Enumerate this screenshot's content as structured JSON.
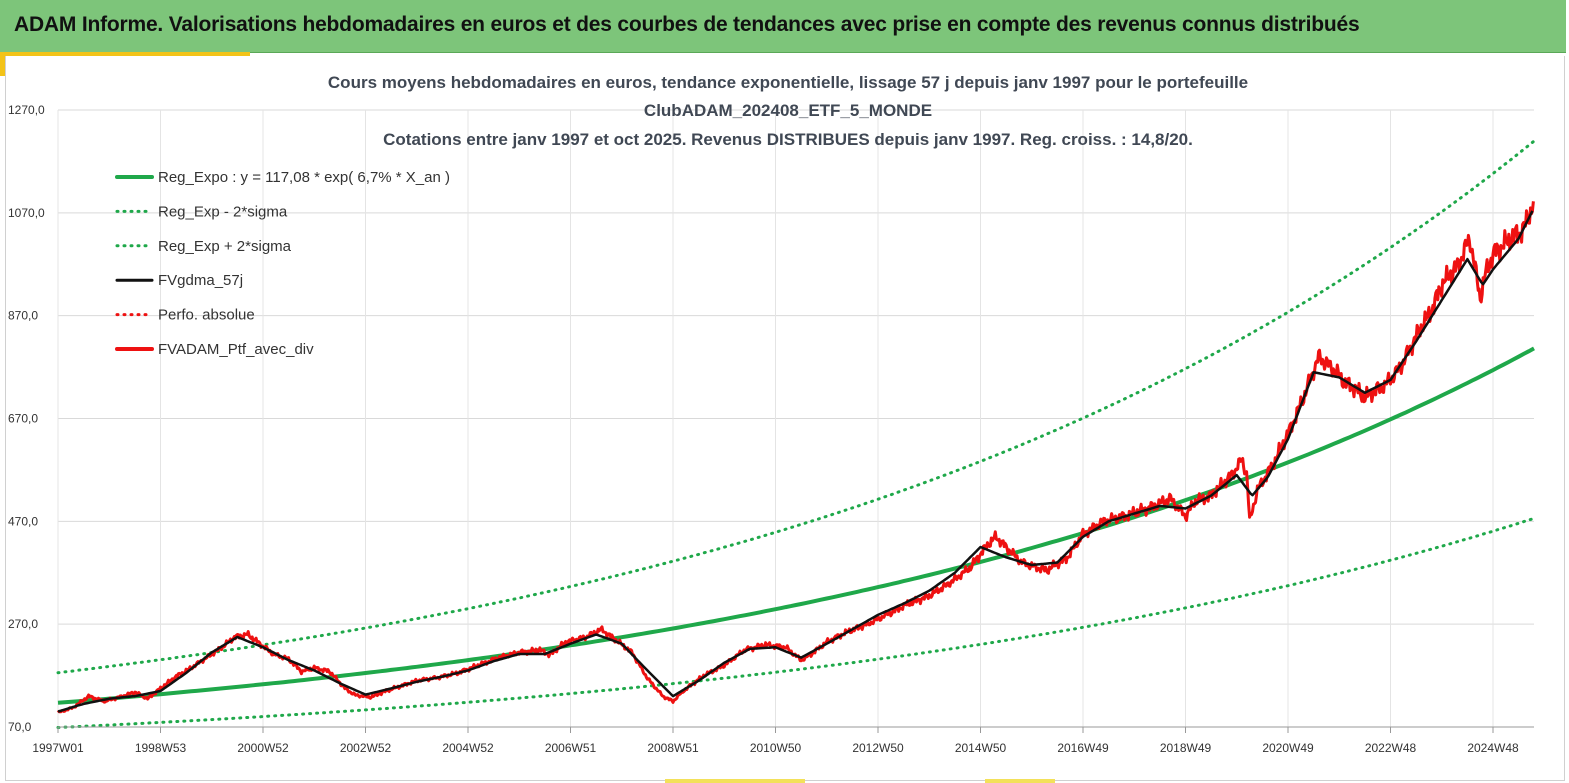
{
  "header": {
    "title": "ADAM Informe. Valorisations hebdomadaires en euros et des courbes de tendances avec prise en compte des revenus connus distribués"
  },
  "colors": {
    "banner": "#7dc57a",
    "accent": "#f3c318",
    "trend_green": "#1fa84a",
    "price_red": "#ee1111",
    "smooth_black": "#111111"
  },
  "chart_data": {
    "type": "line",
    "title": [
      "Cours moyens hebdomadaires  en euros, tendance exponentielle, lissage 57 j depuis janv 1997 pour le portefeuille",
      "ClubADAM_202408_ETF_5_MONDE",
      "Cotations  entre janv 1997 et oct 2025. Revenus DISTRIBUES depuis janv 1997. Reg. croiss. : 14,8/20."
    ],
    "y_ticks": [
      "1270,0",
      "1070,0",
      "870,0",
      "670,0",
      "470,0",
      "270,0",
      "70,0"
    ],
    "y_tick_values": [
      1270,
      1070,
      870,
      670,
      470,
      270,
      70
    ],
    "ylim": [
      70,
      1270
    ],
    "x_ticks": [
      "1997W01",
      "1998W53",
      "2000W52",
      "2002W52",
      "2004W52",
      "2006W51",
      "2008W51",
      "2010W50",
      "2012W50",
      "2014W50",
      "2016W49",
      "2018W49",
      "2020W49",
      "2022W48",
      "2024W48"
    ],
    "x_tick_years": [
      1997,
      1999,
      2001,
      2003,
      2005,
      2007,
      2009,
      2011,
      2013,
      2015,
      2017,
      2019,
      2021,
      2023,
      2025
    ],
    "xlim_years": [
      1997,
      2025.8
    ],
    "grid": true,
    "legend": {
      "placement": "top-left",
      "entries": [
        "Reg_Expo : y = 117,08 * exp( 6,7% *  X_an )",
        "Reg_Exp - 2*sigma",
        "Reg_Exp + 2*sigma",
        "FVgdma_57j",
        "Perfo. absolue",
        "FVADAM_Ptf_avec_div"
      ]
    },
    "trend": {
      "label": "Reg_Expo",
      "start": 117.08,
      "annual_rate": 0.067,
      "lower_factor": 0.59,
      "upper_factor": 1.5
    },
    "series": [
      {
        "name": "FVADAM_Ptf_avec_div",
        "x": [
          1997.0,
          1997.3,
          1997.6,
          1997.9,
          1998.2,
          1998.5,
          1998.75,
          1999.0,
          1999.3,
          1999.6,
          1999.9,
          2000.2,
          2000.45,
          2000.7,
          2000.9,
          2001.2,
          2001.5,
          2001.75,
          2002.0,
          2002.3,
          2002.6,
          2002.8,
          2003.1,
          2003.4,
          2003.7,
          2004.0,
          2004.4,
          2004.8,
          2005.2,
          2005.6,
          2006.0,
          2006.4,
          2006.6,
          2006.9,
          2007.3,
          2007.6,
          2007.9,
          2008.2,
          2008.5,
          2008.8,
          2009.0,
          2009.2,
          2009.6,
          2010.0,
          2010.4,
          2010.8,
          2011.2,
          2011.5,
          2011.7,
          2012.0,
          2012.4,
          2012.8,
          2013.2,
          2013.6,
          2014.0,
          2014.4,
          2014.8,
          2015.1,
          2015.3,
          2015.6,
          2015.8,
          2016.1,
          2016.3,
          2016.7,
          2017.0,
          2017.4,
          2017.8,
          2018.1,
          2018.4,
          2018.7,
          2019.0,
          2019.2,
          2019.5,
          2019.9,
          2020.1,
          2020.2,
          2020.25,
          2020.4,
          2020.7,
          2021.0,
          2021.3,
          2021.6,
          2021.9,
          2022.1,
          2022.3,
          2022.5,
          2022.7,
          2022.9,
          2023.2,
          2023.5,
          2023.8,
          2024.0,
          2024.3,
          2024.55,
          2024.75,
          2024.85,
          2025.0,
          2025.3,
          2025.6,
          2025.8
        ],
        "values": [
          98,
          108,
          130,
          120,
          128,
          138,
          125,
          145,
          168,
          185,
          205,
          225,
          245,
          250,
          235,
          212,
          202,
          178,
          185,
          178,
          145,
          132,
          128,
          140,
          150,
          160,
          166,
          175,
          190,
          205,
          215,
          220,
          210,
          235,
          245,
          260,
          238,
          215,
          165,
          130,
          120,
          140,
          170,
          190,
          220,
          230,
          225,
          200,
          212,
          235,
          255,
          270,
          290,
          310,
          325,
          350,
          380,
          420,
          440,
          410,
          390,
          380,
          375,
          400,
          445,
          470,
          480,
          490,
          500,
          515,
          480,
          510,
          520,
          560,
          590,
          560,
          470,
          530,
          580,
          640,
          710,
          790,
          765,
          740,
          730,
          710,
          725,
          735,
          770,
          830,
          880,
          930,
          965,
          1020,
          905,
          950,
          990,
          1015,
          1040,
          1090
        ]
      },
      {
        "name": "FVgdma_57j",
        "x": [
          1997.0,
          1997.5,
          1998.0,
          1998.5,
          1999.0,
          1999.5,
          2000.0,
          2000.5,
          2001.0,
          2001.5,
          2002.0,
          2002.5,
          2003.0,
          2003.5,
          2004.0,
          2004.5,
          2005.0,
          2005.5,
          2006.0,
          2006.5,
          2007.0,
          2007.5,
          2008.0,
          2008.5,
          2009.0,
          2009.5,
          2010.0,
          2010.5,
          2011.0,
          2011.5,
          2012.0,
          2012.5,
          2013.0,
          2013.5,
          2014.0,
          2014.5,
          2015.0,
          2015.5,
          2016.0,
          2016.5,
          2017.0,
          2017.5,
          2018.0,
          2018.5,
          2019.0,
          2019.5,
          2020.0,
          2020.3,
          2020.6,
          2021.0,
          2021.5,
          2022.0,
          2022.5,
          2023.0,
          2023.5,
          2024.0,
          2024.5,
          2024.8,
          2025.0,
          2025.5,
          2025.8
        ],
        "values": [
          100,
          115,
          125,
          130,
          140,
          175,
          215,
          245,
          225,
          200,
          180,
          155,
          133,
          145,
          158,
          168,
          180,
          198,
          212,
          212,
          232,
          250,
          232,
          180,
          130,
          160,
          195,
          222,
          225,
          205,
          232,
          260,
          288,
          310,
          335,
          370,
          420,
          400,
          385,
          390,
          440,
          470,
          485,
          500,
          495,
          520,
          560,
          520,
          555,
          630,
          760,
          750,
          720,
          745,
          820,
          900,
          980,
          930,
          960,
          1020,
          1080
        ]
      }
    ]
  }
}
